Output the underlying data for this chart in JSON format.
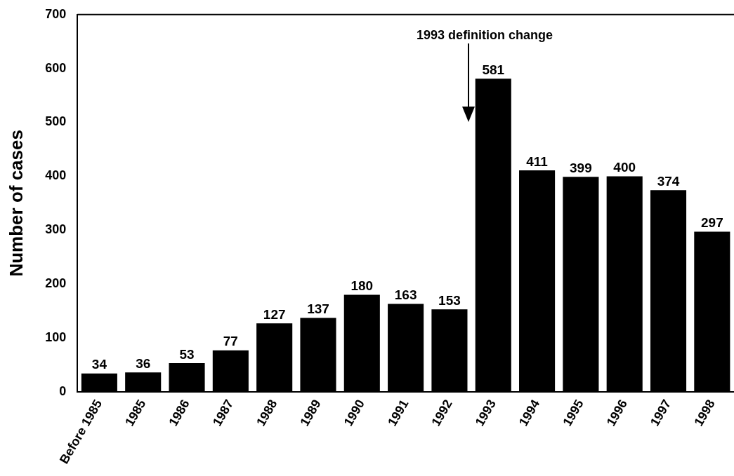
{
  "chart_data": {
    "type": "bar",
    "ylabel": "Number of cases",
    "categories": [
      "Before 1985",
      "1985",
      "1986",
      "1987",
      "1988",
      "1989",
      "1990",
      "1991",
      "1992",
      "1993",
      "1994",
      "1995",
      "1996",
      "1997",
      "1998"
    ],
    "values": [
      34,
      36,
      53,
      77,
      127,
      137,
      180,
      163,
      153,
      581,
      411,
      399,
      400,
      374,
      297
    ],
    "color": "#000000",
    "ylim": [
      0,
      700
    ],
    "yticks": [
      0,
      100,
      200,
      300,
      400,
      500,
      600,
      700
    ],
    "grid": false,
    "legend": false,
    "data_labels": true,
    "annotations": [
      "1993 definition change"
    ]
  }
}
